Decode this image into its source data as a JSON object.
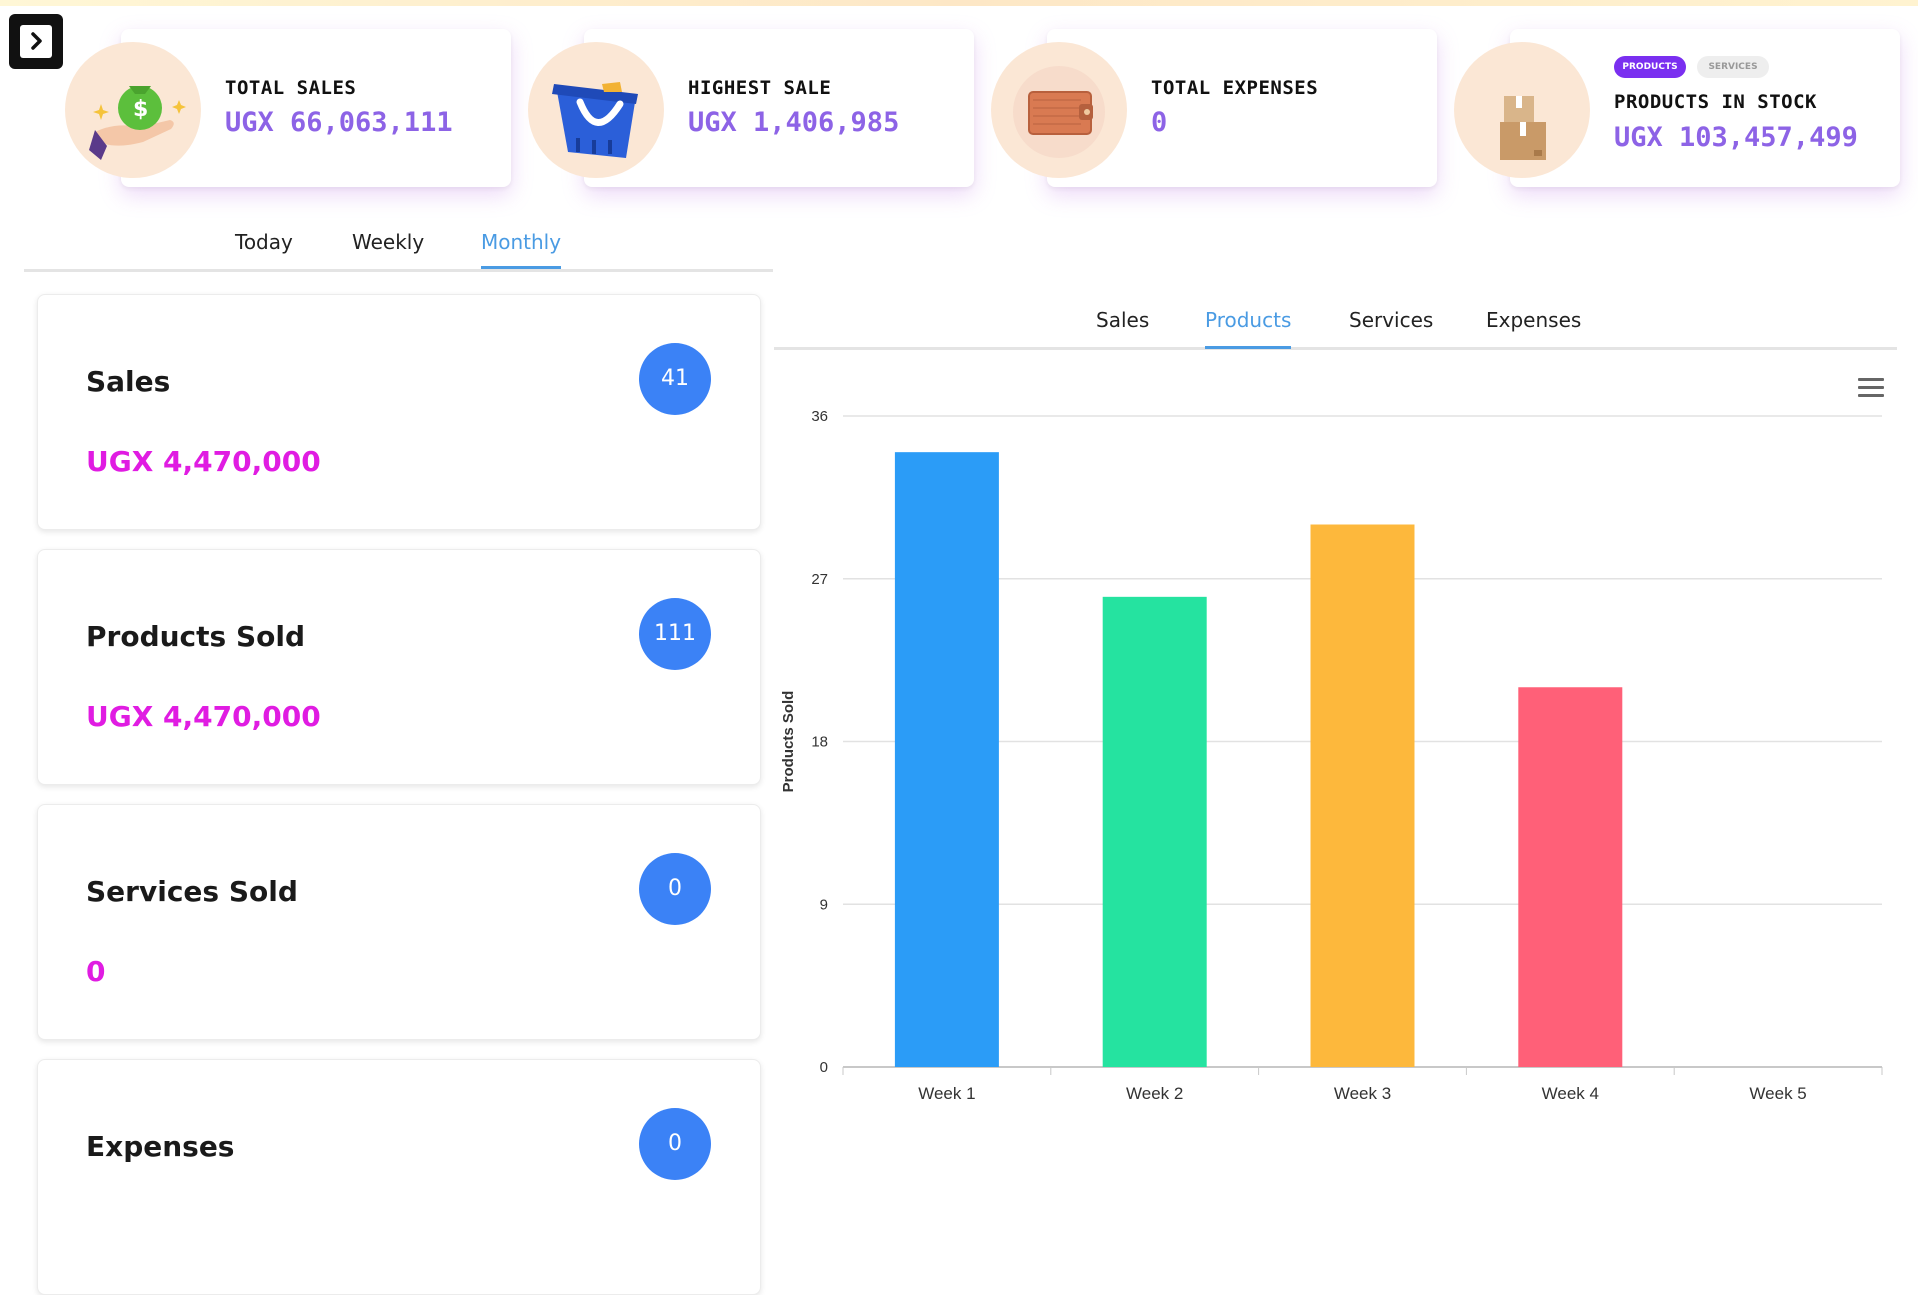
{
  "stats": [
    {
      "title": "TOTAL SALES",
      "value": "UGX 66,063,111",
      "icon": "money-bag-hand-icon"
    },
    {
      "title": "HIGHEST SALE",
      "value": "UGX 1,406,985",
      "icon": "shopping-basket-icon"
    },
    {
      "title": "TOTAL EXPENSES",
      "value": "0",
      "icon": "wallet-icon"
    },
    {
      "title": "PRODUCTS IN STOCK",
      "value": "UGX 103,457,499",
      "icon": "boxes-icon",
      "toggle": {
        "active": "PRODUCTS",
        "inactive": "SERVICES"
      }
    }
  ],
  "period_tabs": [
    {
      "label": "Today",
      "active": false
    },
    {
      "label": "Weekly",
      "active": false
    },
    {
      "label": "Monthly",
      "active": true
    }
  ],
  "summary": [
    {
      "title": "Sales",
      "amount": "UGX 4,470,000",
      "count": "41"
    },
    {
      "title": "Products Sold",
      "amount": "UGX 4,470,000",
      "count": "111"
    },
    {
      "title": "Services Sold",
      "amount": "0",
      "count": "0"
    },
    {
      "title": "Expenses",
      "amount": "",
      "count": "0"
    }
  ],
  "category_tabs": [
    {
      "label": "Sales",
      "active": false
    },
    {
      "label": "Products",
      "active": true
    },
    {
      "label": "Services",
      "active": false
    },
    {
      "label": "Expenses",
      "active": false
    }
  ],
  "colors": {
    "accent_blue": "#4a9be3",
    "badge_blue": "#3b82f6",
    "stat_value_purple": "#8d63e6",
    "amount_magenta": "#e01ce2"
  },
  "chart_data": {
    "type": "bar",
    "categories": [
      "Week 1",
      "Week 2",
      "Week 3",
      "Week 4",
      "Week 5"
    ],
    "values": [
      34,
      26,
      30,
      21,
      0
    ],
    "colors": [
      "#2b9cf7",
      "#25e3a0",
      "#fdb83c",
      "#ff6078",
      "#8a7cf0"
    ],
    "title": "",
    "xlabel": "",
    "ylabel": "Products Sold",
    "ylim": [
      0,
      36
    ],
    "yticks": [
      0,
      9,
      18,
      27,
      36
    ],
    "grid": true
  }
}
